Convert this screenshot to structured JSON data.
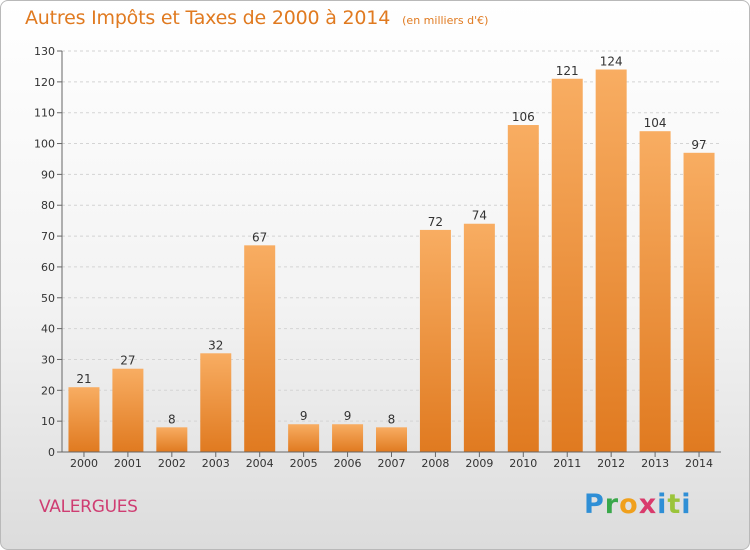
{
  "title": "Autres Impôts et Taxes de 2000 à 2014",
  "unit": "(en milliers d'€)",
  "location": "VALERGUES",
  "logo_text": "Proxiti",
  "colors": {
    "bar_light": "#f8ad62",
    "bar_dark": "#e07a20",
    "title": "#e07a20",
    "location": "#cf3d72"
  },
  "chart_data": {
    "type": "bar",
    "title": "Autres Impôts et Taxes de 2000 à 2014",
    "subtitle": "(en milliers d'€)",
    "categories": [
      "2000",
      "2001",
      "2002",
      "2003",
      "2004",
      "2005",
      "2006",
      "2007",
      "2008",
      "2009",
      "2010",
      "2011",
      "2012",
      "2013",
      "2014"
    ],
    "values": [
      21,
      27,
      8,
      32,
      67,
      9,
      9,
      8,
      72,
      74,
      106,
      121,
      124,
      104,
      97
    ],
    "ylim": [
      0,
      130
    ],
    "yticks": [
      0,
      10,
      20,
      30,
      40,
      50,
      60,
      70,
      80,
      90,
      100,
      110,
      120,
      130
    ],
    "grid": true,
    "xlabel": "",
    "ylabel": ""
  }
}
